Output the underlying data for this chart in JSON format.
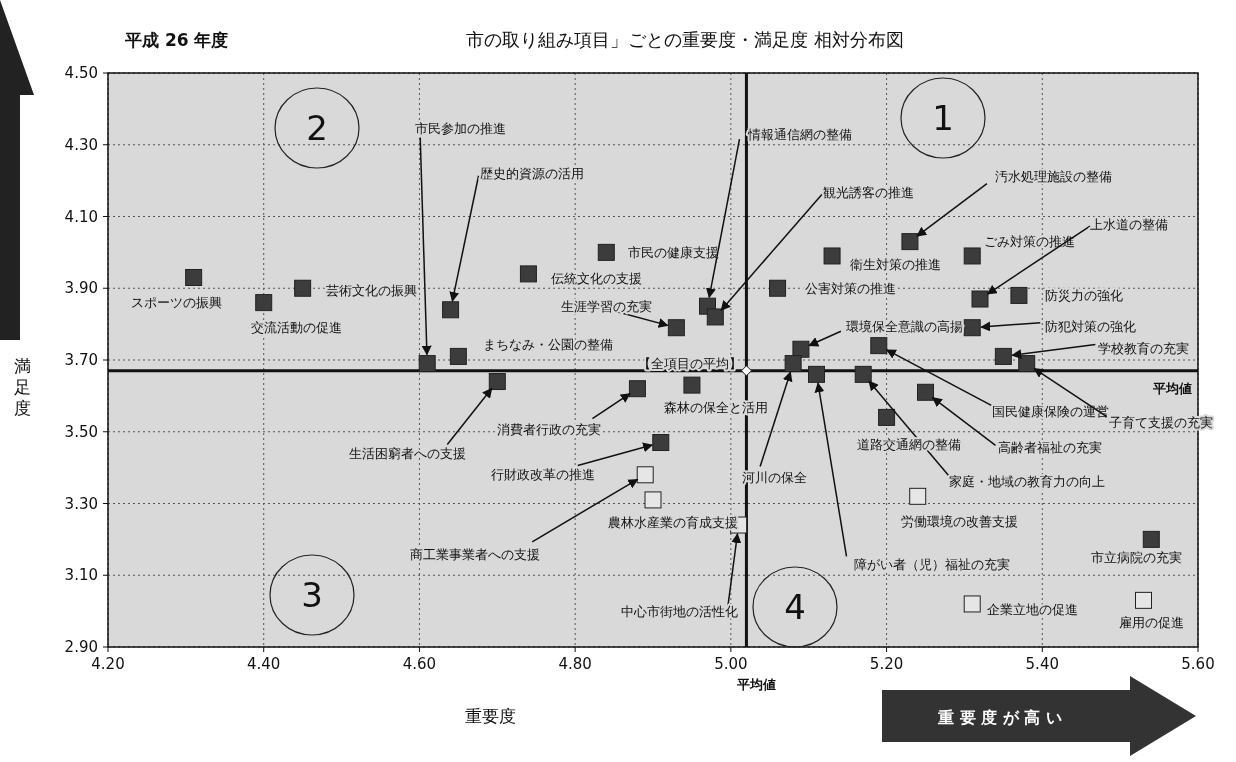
{
  "chart_data": {
    "type": "scatter",
    "title": "市の取り組み項目」ごとの重要度・満足度 相対分布図",
    "subtitle": "平成 26 年度",
    "xlabel": "重要度",
    "ylabel": "満足度",
    "xlim": [
      4.2,
      5.6
    ],
    "ylim": [
      2.9,
      4.5
    ],
    "xticks": [
      {
        "value": 4.2,
        "label": "4.20"
      },
      {
        "value": 4.4,
        "label": "4.40"
      },
      {
        "value": 4.6,
        "label": "4.60"
      },
      {
        "value": 4.8,
        "label": "4.80"
      },
      {
        "value": 5.0,
        "label": "5.00"
      },
      {
        "value": 5.2,
        "label": "5.20"
      },
      {
        "value": 5.4,
        "label": "5.40"
      },
      {
        "value": 5.6,
        "label": "5.60"
      }
    ],
    "yticks": [
      {
        "value": 2.9,
        "label": "2.90"
      },
      {
        "value": 3.1,
        "label": "3.10"
      },
      {
        "value": 3.3,
        "label": "3.30"
      },
      {
        "value": 3.5,
        "label": "3.50"
      },
      {
        "value": 3.7,
        "label": "3.70"
      },
      {
        "value": 3.9,
        "label": "3.90"
      },
      {
        "value": 4.1,
        "label": "4.10"
      },
      {
        "value": 4.3,
        "label": "4.30"
      },
      {
        "value": 4.5,
        "label": "4.50"
      }
    ],
    "grid": true,
    "marker": "square",
    "series": [
      {
        "color": "#3c3c3c",
        "x": [
          4.31,
          4.4,
          4.45,
          4.64,
          4.74,
          4.61,
          4.65,
          4.7,
          4.84,
          4.93,
          4.97,
          4.98,
          5.06,
          5.13,
          5.23,
          5.31,
          5.09,
          5.08,
          5.11,
          4.88,
          4.95,
          4.91,
          5.17,
          5.19,
          5.25,
          5.2,
          5.32,
          5.37,
          5.31,
          5.35,
          5.38,
          5.54
        ],
        "values": [
          3.93,
          3.86,
          3.9,
          3.84,
          3.94,
          3.69,
          3.71,
          3.64,
          4.0,
          3.79,
          3.85,
          3.82,
          3.9,
          3.99,
          4.03,
          3.99,
          3.73,
          3.69,
          3.66,
          3.62,
          3.63,
          3.47,
          3.66,
          3.74,
          3.61,
          3.54,
          3.87,
          3.88,
          3.79,
          3.71,
          3.69,
          3.2
        ],
        "value_labels": [
          "スポーツの振興",
          "交流活動の促進",
          "芸術文化の振興",
          "歴史的資源の活用",
          "伝統文化の支援",
          "市民参加の推進",
          "まちなみ・公園の整備",
          "生活困窮者への支援",
          "市民の健康支援",
          "生涯学習の充実",
          "情報通信網の整備",
          "観光誘客の推進",
          "公害対策の推進",
          "衛生対策の推進",
          "汚水処理施設の整備",
          "ごみ対策の推進",
          "環境保全意識の高揚",
          "河川の保全",
          "障がい者（児）福祉の充実",
          "消費者行政の充実",
          "森林の保全と活用",
          "行財政改革の推進",
          "家庭・地域の教育力の向上",
          "国民健康保険の運営",
          "高齢者福祉の充実",
          "道路交通網の整備",
          "上水道の整備",
          "防災力の強化",
          "防犯対策の強化",
          "学校教育の充実",
          "子育て支援の充実",
          "市立病院の充実"
        ]
      },
      {
        "color": "#e6e6e6",
        "x": [
          4.89,
          4.9,
          5.01,
          5.24,
          5.31,
          5.53
        ],
        "values": [
          3.38,
          3.31,
          3.24,
          3.32,
          3.02,
          3.03
        ],
        "value_labels": [
          "商工業事業者への支援",
          "農林水産業の育成支援",
          "中心市街地の活性化",
          "労働環境の改善支援",
          "企業立地の促進",
          "雇用の促進"
        ]
      },
      {
        "marker": "diamond",
        "color": "#ffffff",
        "x": [
          5.02
        ],
        "values": [
          3.67
        ],
        "value_labels": [
          "【全項目の平均】"
        ]
      }
    ],
    "ref_lines": [
      {
        "axis": "x",
        "value": 5.02,
        "label": "平均値"
      },
      {
        "axis": "y",
        "value": 3.67,
        "label": "平均値"
      }
    ],
    "annotations": [
      "1",
      "2",
      "3",
      "4",
      "重 要 度 が 高 い"
    ]
  }
}
